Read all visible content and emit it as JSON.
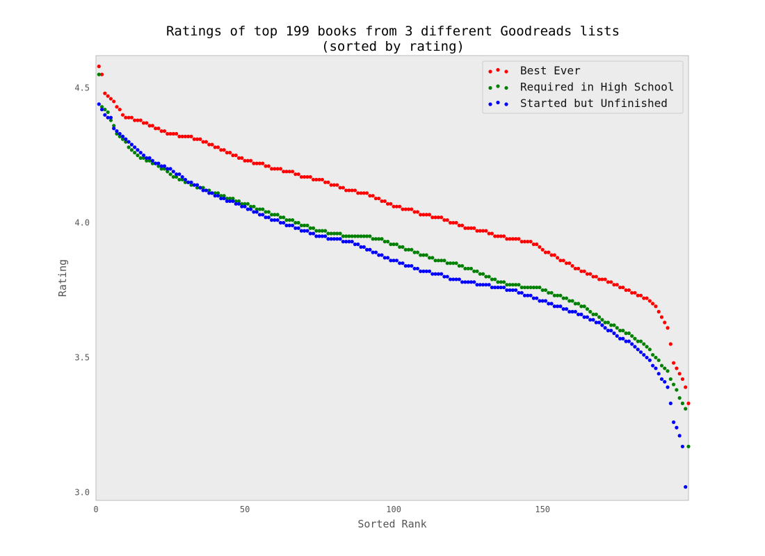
{
  "chart_data": {
    "type": "scatter",
    "title_line1": "Ratings of top 199 books from 3 different Goodreads lists",
    "title_line2": "(sorted by rating)",
    "xlabel": "Sorted Rank",
    "ylabel": "Rating",
    "xlim": [
      0,
      199
    ],
    "ylim": [
      2.97,
      4.62
    ],
    "xticks": [
      0,
      50,
      100,
      150
    ],
    "yticks": [
      3.0,
      3.5,
      4.0,
      4.5
    ],
    "xtick_labels": [
      "0",
      "50",
      "100",
      "150"
    ],
    "ytick_labels": [
      "3.0",
      "3.5",
      "4.0",
      "4.5"
    ],
    "grid": false,
    "legend_position": "top-right",
    "plot_background": "#ececec",
    "series": [
      {
        "name": "Best Ever",
        "color": "#ff0000",
        "keypoints": [
          [
            1,
            4.58
          ],
          [
            2,
            4.55
          ],
          [
            3,
            4.48
          ],
          [
            5,
            4.46
          ],
          [
            8,
            4.42
          ],
          [
            10,
            4.39
          ],
          [
            15,
            4.38
          ],
          [
            20,
            4.35
          ],
          [
            25,
            4.33
          ],
          [
            30,
            4.32
          ],
          [
            35,
            4.31
          ],
          [
            40,
            4.28
          ],
          [
            45,
            4.26
          ],
          [
            50,
            4.23
          ],
          [
            55,
            4.22
          ],
          [
            60,
            4.2
          ],
          [
            65,
            4.19
          ],
          [
            70,
            4.17
          ],
          [
            75,
            4.16
          ],
          [
            80,
            4.14
          ],
          [
            85,
            4.12
          ],
          [
            90,
            4.11
          ],
          [
            95,
            4.09
          ],
          [
            100,
            4.06
          ],
          [
            105,
            4.05
          ],
          [
            110,
            4.03
          ],
          [
            115,
            4.02
          ],
          [
            120,
            4.0
          ],
          [
            125,
            3.98
          ],
          [
            130,
            3.97
          ],
          [
            135,
            3.95
          ],
          [
            140,
            3.94
          ],
          [
            145,
            3.93
          ],
          [
            148,
            3.92
          ],
          [
            150,
            3.9
          ],
          [
            155,
            3.87
          ],
          [
            160,
            3.84
          ],
          [
            165,
            3.81
          ],
          [
            170,
            3.79
          ],
          [
            175,
            3.77
          ],
          [
            180,
            3.74
          ],
          [
            185,
            3.72
          ],
          [
            188,
            3.69
          ],
          [
            190,
            3.65
          ],
          [
            192,
            3.61
          ],
          [
            193,
            3.55
          ],
          [
            194,
            3.48
          ],
          [
            196,
            3.44
          ],
          [
            197,
            3.42
          ],
          [
            198,
            3.39
          ],
          [
            199,
            3.33
          ]
        ]
      },
      {
        "name": "Required in High School",
        "color": "#008000",
        "keypoints": [
          [
            1,
            4.55
          ],
          [
            2,
            4.43
          ],
          [
            4,
            4.41
          ],
          [
            7,
            4.33
          ],
          [
            9,
            4.31
          ],
          [
            11,
            4.28
          ],
          [
            13,
            4.26
          ],
          [
            15,
            4.24
          ],
          [
            20,
            4.22
          ],
          [
            25,
            4.18
          ],
          [
            30,
            4.15
          ],
          [
            35,
            4.13
          ],
          [
            40,
            4.11
          ],
          [
            45,
            4.09
          ],
          [
            50,
            4.07
          ],
          [
            55,
            4.05
          ],
          [
            60,
            4.03
          ],
          [
            65,
            4.01
          ],
          [
            70,
            3.99
          ],
          [
            75,
            3.97
          ],
          [
            80,
            3.96
          ],
          [
            85,
            3.95
          ],
          [
            90,
            3.95
          ],
          [
            95,
            3.94
          ],
          [
            100,
            3.92
          ],
          [
            105,
            3.9
          ],
          [
            110,
            3.88
          ],
          [
            115,
            3.86
          ],
          [
            120,
            3.85
          ],
          [
            125,
            3.83
          ],
          [
            130,
            3.81
          ],
          [
            135,
            3.78
          ],
          [
            140,
            3.77
          ],
          [
            145,
            3.76
          ],
          [
            148,
            3.76
          ],
          [
            150,
            3.75
          ],
          [
            155,
            3.73
          ],
          [
            160,
            3.71
          ],
          [
            165,
            3.68
          ],
          [
            170,
            3.64
          ],
          [
            175,
            3.61
          ],
          [
            180,
            3.58
          ],
          [
            185,
            3.54
          ],
          [
            188,
            3.5
          ],
          [
            190,
            3.47
          ],
          [
            192,
            3.45
          ],
          [
            193,
            3.42
          ],
          [
            195,
            3.38
          ],
          [
            196,
            3.35
          ],
          [
            197,
            3.33
          ],
          [
            198,
            3.31
          ],
          [
            199,
            3.17
          ]
        ]
      },
      {
        "name": "Started but Unfinished",
        "color": "#0000ff",
        "keypoints": [
          [
            1,
            4.44
          ],
          [
            2,
            4.42
          ],
          [
            3,
            4.4
          ],
          [
            5,
            4.39
          ],
          [
            6,
            4.35
          ],
          [
            8,
            4.33
          ],
          [
            10,
            4.31
          ],
          [
            15,
            4.26
          ],
          [
            20,
            4.22
          ],
          [
            25,
            4.2
          ],
          [
            30,
            4.16
          ],
          [
            35,
            4.13
          ],
          [
            40,
            4.1
          ],
          [
            45,
            4.08
          ],
          [
            50,
            4.06
          ],
          [
            55,
            4.03
          ],
          [
            60,
            4.01
          ],
          [
            65,
            3.99
          ],
          [
            70,
            3.97
          ],
          [
            75,
            3.95
          ],
          [
            80,
            3.94
          ],
          [
            85,
            3.93
          ],
          [
            90,
            3.91
          ],
          [
            95,
            3.88
          ],
          [
            100,
            3.86
          ],
          [
            105,
            3.84
          ],
          [
            110,
            3.82
          ],
          [
            115,
            3.81
          ],
          [
            120,
            3.79
          ],
          [
            125,
            3.78
          ],
          [
            130,
            3.77
          ],
          [
            135,
            3.76
          ],
          [
            140,
            3.75
          ],
          [
            145,
            3.73
          ],
          [
            150,
            3.71
          ],
          [
            155,
            3.69
          ],
          [
            160,
            3.67
          ],
          [
            165,
            3.65
          ],
          [
            170,
            3.62
          ],
          [
            175,
            3.58
          ],
          [
            180,
            3.55
          ],
          [
            185,
            3.5
          ],
          [
            188,
            3.46
          ],
          [
            190,
            3.42
          ],
          [
            192,
            3.39
          ],
          [
            193,
            3.33
          ],
          [
            194,
            3.26
          ],
          [
            195,
            3.24
          ],
          [
            197,
            3.17
          ],
          [
            198,
            3.02
          ]
        ]
      }
    ]
  }
}
